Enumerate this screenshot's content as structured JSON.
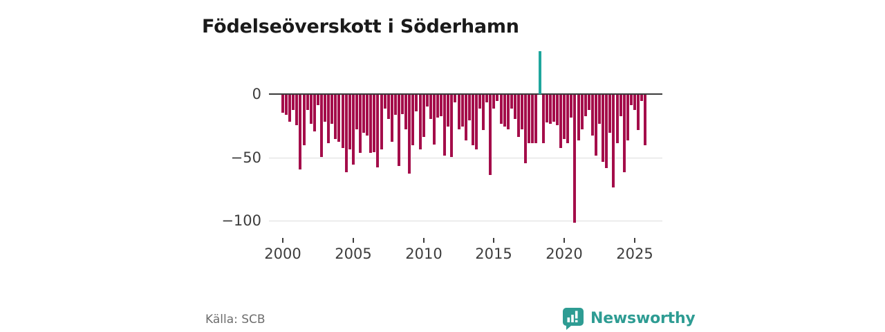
{
  "title": "Födelseöverskott i Söderhamn",
  "source": "Källa: SCB",
  "branding": {
    "logo_text": "Newsworthy",
    "logo_color": "#2e9c93"
  },
  "chart_data": {
    "type": "bar",
    "title": "Födelseöverskott i Söderhamn",
    "xlabel": "",
    "ylabel": "",
    "ylim": [
      -110,
      40
    ],
    "grid": "horizontal-only",
    "legend": "none",
    "yticks": [
      0,
      -50,
      -100
    ],
    "ytick_labels": [
      "0",
      "−50",
      "−100"
    ],
    "xtick_labels": [
      "2000",
      "2005",
      "2010",
      "2015",
      "2020",
      "2025"
    ],
    "colors": {
      "negative": "#a40d4a",
      "positive": "#1fa69d",
      "axis": "#3a3a3a",
      "gridline": "#dcdcdc"
    },
    "x": [
      "2000 Q1",
      "2000 Q2",
      "2000 Q3",
      "2000 Q4",
      "2001 Q1",
      "2001 Q2",
      "2001 Q3",
      "2001 Q4",
      "2002 Q1",
      "2002 Q2",
      "2002 Q3",
      "2002 Q4",
      "2003 Q1",
      "2003 Q2",
      "2003 Q3",
      "2003 Q4",
      "2004 Q1",
      "2004 Q2",
      "2004 Q3",
      "2004 Q4",
      "2005 Q1",
      "2005 Q2",
      "2005 Q3",
      "2005 Q4",
      "2006 Q1",
      "2006 Q2",
      "2006 Q3",
      "2006 Q4",
      "2007 Q1",
      "2007 Q2",
      "2007 Q3",
      "2007 Q4",
      "2008 Q1",
      "2008 Q2",
      "2008 Q3",
      "2008 Q4",
      "2009 Q1",
      "2009 Q2",
      "2009 Q3",
      "2009 Q4",
      "2010 Q1",
      "2010 Q2",
      "2010 Q3",
      "2010 Q4",
      "2011 Q1",
      "2011 Q2",
      "2011 Q3",
      "2011 Q4",
      "2012 Q1",
      "2012 Q2",
      "2012 Q3",
      "2012 Q4",
      "2013 Q1",
      "2013 Q2",
      "2013 Q3",
      "2013 Q4",
      "2014 Q1",
      "2014 Q2",
      "2014 Q3",
      "2014 Q4",
      "2015 Q1",
      "2015 Q2",
      "2015 Q3",
      "2015 Q4",
      "2016 Q1",
      "2016 Q2",
      "2016 Q3",
      "2016 Q4",
      "2017 Q1",
      "2017 Q2",
      "2017 Q3",
      "2017 Q4",
      "2018 Q1",
      "2018 Q2",
      "2018 Q3",
      "2018 Q4",
      "2019 Q1",
      "2019 Q2",
      "2019 Q3",
      "2019 Q4",
      "2020 Q1",
      "2020 Q2",
      "2020 Q3",
      "2020 Q4",
      "2021 Q1",
      "2021 Q2",
      "2021 Q3",
      "2021 Q4",
      "2022 Q1",
      "2022 Q2",
      "2022 Q3",
      "2022 Q4",
      "2023 Q1",
      "2023 Q2",
      "2023 Q3",
      "2023 Q4",
      "2024 Q1",
      "2024 Q2",
      "2024 Q3",
      "2024 Q4",
      "2025 Q1",
      "2025 Q2",
      "2025 Q3",
      "2025 Q4"
    ],
    "values": [
      -14,
      -16,
      -21,
      -12,
      -24,
      -59,
      -40,
      -12,
      -23,
      -29,
      -8,
      -49,
      -21,
      -38,
      -23,
      -35,
      -37,
      -42,
      -61,
      -43,
      -55,
      -27,
      -46,
      -30,
      -32,
      -46,
      -45,
      -57,
      -43,
      -11,
      -19,
      -37,
      -16,
      -56,
      -15,
      -27,
      -62,
      -40,
      -13,
      -43,
      -33,
      -9,
      -19,
      -39,
      -18,
      -17,
      -48,
      -25,
      -49,
      -6,
      -27,
      -25,
      -36,
      -20,
      -40,
      -43,
      -11,
      -28,
      -6,
      -63,
      -11,
      -5,
      -23,
      -25,
      -27,
      -11,
      -19,
      -33,
      -27,
      -54,
      -38,
      -38,
      -38,
      34,
      -38,
      -22,
      -23,
      -21,
      -24,
      -42,
      -35,
      -38,
      -18,
      -101,
      -36,
      -27,
      -17,
      -12,
      -32,
      -48,
      -23,
      -53,
      -58,
      -30,
      -73,
      -38,
      -17,
      -61,
      -36,
      -8,
      -12,
      -28,
      -5,
      -40
    ]
  }
}
